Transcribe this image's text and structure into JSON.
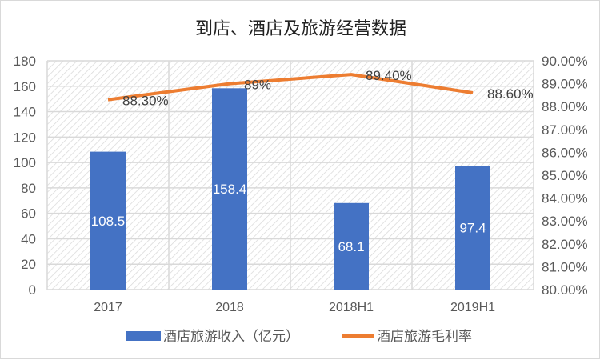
{
  "chart_data": {
    "type": "bar+line",
    "title": "到店、酒店及旅游经营数据",
    "categories": [
      "2017",
      "2018",
      "2018H1",
      "2019H1"
    ],
    "series": [
      {
        "name": "酒店旅游收入（亿元）",
        "type": "bar",
        "axis": "left",
        "color": "#4472C4",
        "values": [
          108.5,
          158.4,
          68.1,
          97.4
        ],
        "labels": [
          "108.5",
          "158.4",
          "68.1",
          "97.4"
        ]
      },
      {
        "name": "酒店旅游毛利率",
        "type": "line",
        "axis": "right",
        "color": "#ED7D31",
        "values": [
          88.3,
          89.0,
          89.4,
          88.6
        ],
        "labels": [
          "88.30%",
          "89%",
          "89.40%",
          "88.60%"
        ]
      }
    ],
    "ylim_left": [
      0,
      180
    ],
    "left_ticks": [
      "0",
      "20",
      "40",
      "60",
      "80",
      "100",
      "120",
      "140",
      "160",
      "180"
    ],
    "ylim_right": [
      80,
      90
    ],
    "right_ticks": [
      "80.00%",
      "81.00%",
      "82.00%",
      "83.00%",
      "84.00%",
      "85.00%",
      "86.00%",
      "87.00%",
      "88.00%",
      "89.00%",
      "90.00%"
    ],
    "grid": true,
    "legend": "bottom"
  }
}
